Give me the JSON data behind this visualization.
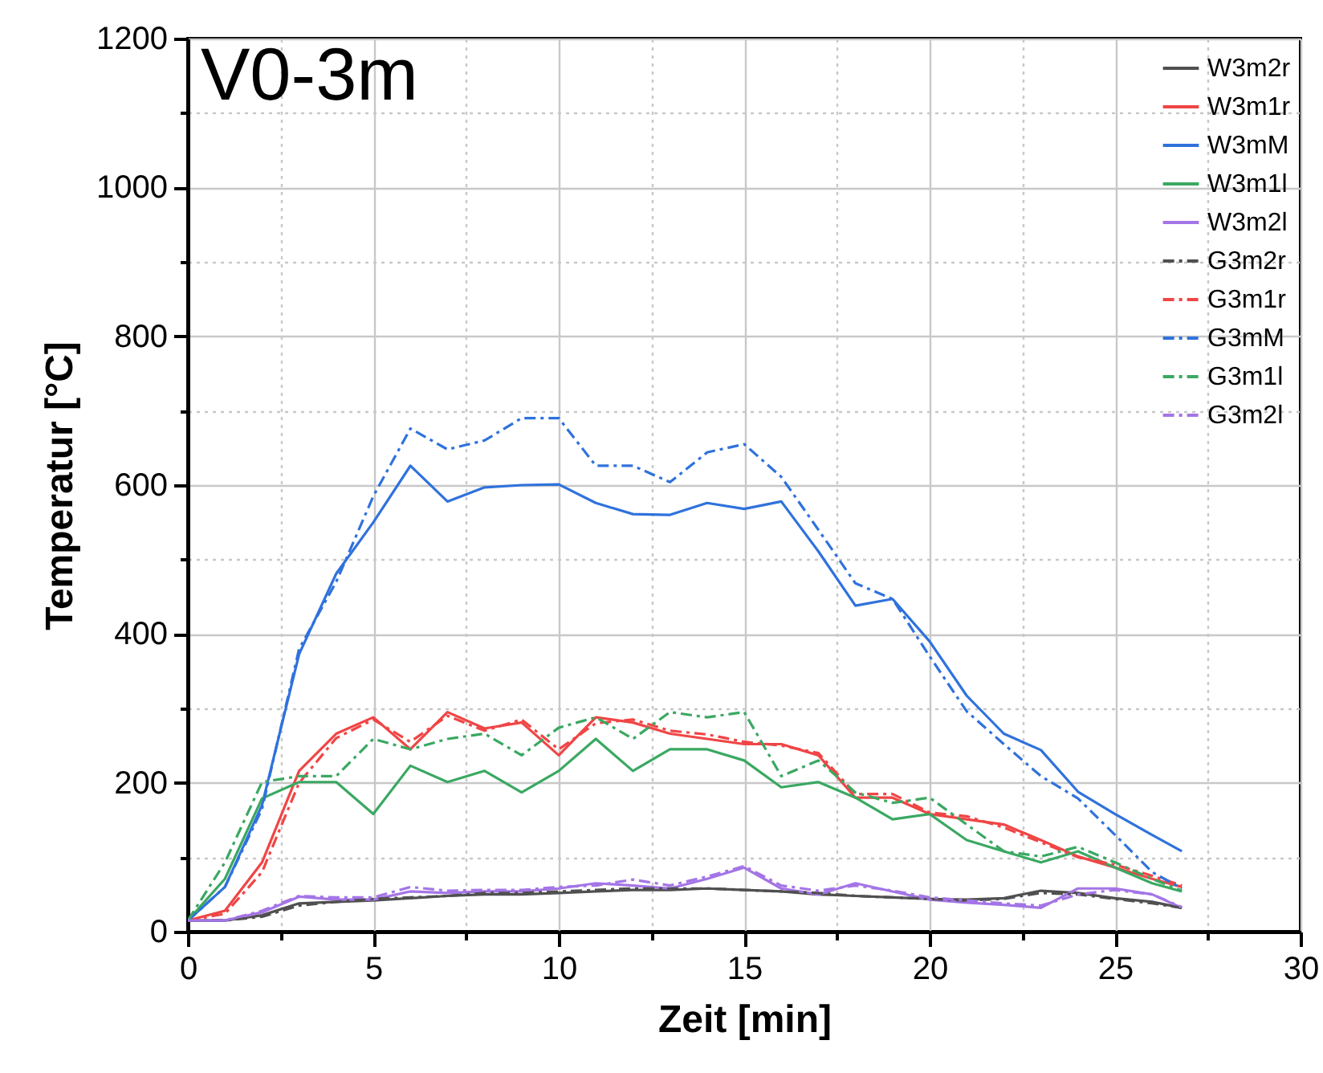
{
  "chart_data": {
    "type": "line",
    "title": "V0-3m",
    "xlabel": "Zeit [min]",
    "ylabel": "Temperatur [°C]",
    "x": [
      0,
      1,
      2,
      3,
      4,
      5,
      6,
      7,
      8,
      9,
      10,
      11,
      12,
      13,
      14,
      15,
      16,
      17,
      18,
      19,
      20,
      21,
      22,
      23,
      24,
      25,
      26,
      26.8
    ],
    "xlim": [
      0,
      30
    ],
    "xticks": [
      0,
      {
        "value": 2.5,
        "label": null
      },
      5,
      {
        "value": 7.5,
        "label": null
      },
      10,
      {
        "value": 12.5,
        "label": null
      },
      15,
      {
        "value": 17.5,
        "label": null
      },
      20,
      {
        "value": 22.5,
        "label": null
      },
      25,
      {
        "value": 27.5,
        "label": null
      },
      30
    ],
    "ylim": [
      0,
      1200
    ],
    "yticks": [
      0,
      {
        "value": 100,
        "label": null
      },
      200,
      {
        "value": 300,
        "label": null
      },
      400,
      {
        "value": 500,
        "label": null
      },
      600,
      {
        "value": 700,
        "label": null
      },
      800,
      {
        "value": 900,
        "label": null
      },
      1000,
      {
        "value": 1100,
        "label": null
      },
      1200
    ],
    "grid": true,
    "legend": "top right",
    "series": [
      {
        "name": "W3m2r",
        "color": "#505050",
        "line_style": "solid",
        "values": [
          15,
          15,
          22,
          38,
          40,
          42,
          45,
          48,
          50,
          50,
          52,
          54,
          56,
          56,
          58,
          56,
          54,
          50,
          48,
          46,
          44,
          43,
          45,
          55,
          52,
          45,
          40,
          32
        ]
      },
      {
        "name": "W3m1r",
        "color": "#f04545",
        "line_style": "solid",
        "values": [
          15,
          28,
          93,
          216,
          266,
          288,
          245,
          295,
          273,
          281,
          237,
          288,
          281,
          266,
          259,
          252,
          252,
          237,
          180,
          180,
          158,
          151,
          144,
          123,
          101,
          86,
          71,
          60
        ]
      },
      {
        "name": "W3mM",
        "color": "#2f72dc",
        "line_style": "solid",
        "values": [
          15,
          60,
          170,
          373,
          481,
          550,
          626,
          578,
          597,
          600,
          601,
          576,
          561,
          560,
          576,
          568,
          578,
          511,
          438,
          447,
          390,
          317,
          266,
          244,
          188,
          158,
          130,
          108
        ]
      },
      {
        "name": "W3m1l",
        "color": "#3aa862",
        "line_style": "solid",
        "values": [
          15,
          71,
          179,
          201,
          201,
          158,
          223,
          201,
          216,
          187,
          216,
          259,
          216,
          245,
          245,
          230,
          194,
          201,
          180,
          151,
          158,
          123,
          108,
          93,
          108,
          86,
          65,
          54
        ]
      },
      {
        "name": "W3m2l",
        "color": "#a475e6",
        "line_style": "solid",
        "values": [
          15,
          15,
          26,
          47,
          43,
          43,
          54,
          52,
          54,
          54,
          58,
          65,
          62,
          58,
          71,
          86,
          58,
          50,
          65,
          54,
          43,
          39,
          36,
          32,
          58,
          58,
          50,
          32
        ]
      },
      {
        "name": "G3m2r",
        "color": "#505050",
        "line_style": "dashed",
        "values": [
          15,
          15,
          20,
          35,
          40,
          44,
          46,
          48,
          52,
          52,
          54,
          56,
          58,
          58,
          58,
          56,
          54,
          52,
          48,
          46,
          44,
          42,
          44,
          52,
          50,
          44,
          38,
          32
        ]
      },
      {
        "name": "G3m1r",
        "color": "#f04545",
        "line_style": "dashed",
        "values": [
          15,
          24,
          80,
          200,
          260,
          285,
          255,
          290,
          270,
          285,
          245,
          280,
          285,
          270,
          265,
          255,
          250,
          240,
          185,
          185,
          160,
          155,
          140,
          120,
          100,
          90,
          75,
          62
        ]
      },
      {
        "name": "G3mM",
        "color": "#2f72dc",
        "line_style": "dashed",
        "values": [
          15,
          60,
          165,
          380,
          470,
          585,
          676,
          648,
          660,
          690,
          690,
          626,
          626,
          604,
          644,
          655,
          611,
          540,
          468,
          447,
          370,
          296,
          252,
          209,
          179,
          130,
          80,
          58
        ]
      },
      {
        "name": "G3m1l",
        "color": "#3aa862",
        "line_style": "dashed",
        "values": [
          15,
          93,
          201,
          209,
          209,
          259,
          245,
          259,
          266,
          237,
          274,
          288,
          259,
          295,
          288,
          295,
          209,
          230,
          187,
          173,
          180,
          144,
          108,
          101,
          114,
          93,
          71,
          55
        ]
      },
      {
        "name": "G3m2l",
        "color": "#a475e6",
        "line_style": "dashed",
        "values": [
          15,
          15,
          28,
          48,
          46,
          46,
          60,
          55,
          56,
          56,
          60,
          62,
          70,
          62,
          74,
          88,
          62,
          55,
          62,
          55,
          46,
          42,
          38,
          35,
          50,
          56,
          50,
          33
        ]
      }
    ]
  }
}
